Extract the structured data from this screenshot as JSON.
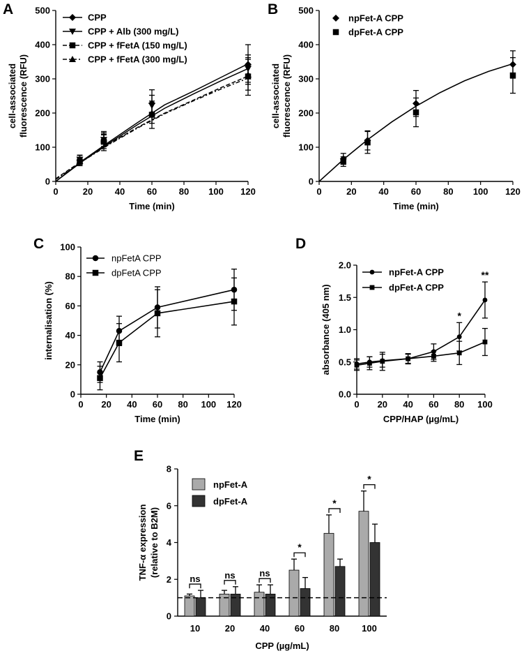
{
  "figure_panels": [
    "A",
    "B",
    "C",
    "D",
    "E"
  ],
  "chart_data": [
    {
      "panel": "A",
      "type": "scatter",
      "xlabel": "Time (min)",
      "ylabel": [
        "cell-associated",
        "fluorescence (RFU)"
      ],
      "xlim": [
        0,
        120
      ],
      "ylim": [
        0,
        500
      ],
      "xticks": [
        "0",
        "20",
        "40",
        "60",
        "80",
        "100",
        "120"
      ],
      "yticks": [
        "0",
        "100",
        "200",
        "300",
        "400",
        "500"
      ],
      "legend_position": "top-left",
      "series": [
        {
          "name": "CPP",
          "marker": "diamond",
          "line": "solid",
          "x": [
            15,
            30,
            60,
            120
          ],
          "y": [
            62,
            118,
            228,
            342
          ],
          "err": [
            15,
            28,
            40,
            58
          ],
          "fit": [
            0,
            62,
            118,
            172,
            224,
            264,
            304,
            344
          ]
        },
        {
          "name": "CPP + Alb (300 mg/L)",
          "marker": "triangle-down",
          "line": "solid",
          "x": [
            15,
            30,
            60,
            120
          ],
          "y": [
            64,
            122,
            222,
            330
          ],
          "err": [
            12,
            20,
            30,
            40
          ],
          "fit": [
            0,
            60,
            114,
            166,
            214,
            256,
            294,
            330
          ]
        },
        {
          "name": "CPP + fFetA (150 mg/L)",
          "marker": "square",
          "line": "dashed",
          "x": [
            15,
            30,
            60,
            120
          ],
          "y": [
            58,
            116,
            195,
            307
          ],
          "err": [
            12,
            20,
            40,
            55
          ],
          "fit": [
            8,
            62,
            112,
            158,
            200,
            238,
            274,
            308
          ]
        },
        {
          "name": "CPP + fFetA (300 mg/L)",
          "marker": "triangle-up",
          "line": "dashdot",
          "x": [
            15,
            30,
            60,
            120
          ],
          "y": [
            60,
            120,
            200,
            312
          ],
          "err": [
            10,
            18,
            30,
            45
          ],
          "fit": [
            6,
            60,
            110,
            156,
            198,
            236,
            270,
            302
          ]
        }
      ]
    },
    {
      "panel": "B",
      "type": "scatter",
      "xlabel": "Time (min)",
      "ylabel": [
        "cell-associated",
        "fluorescence (RFU)"
      ],
      "xlim": [
        0,
        120
      ],
      "ylim": [
        0,
        500
      ],
      "xticks": [
        "0",
        "20",
        "40",
        "60",
        "80",
        "100",
        "120"
      ],
      "yticks": [
        "0",
        "100",
        "200",
        "300",
        "400",
        "500"
      ],
      "legend_position": "top-left",
      "series": [
        {
          "name": "npFet-A CPP",
          "marker": "diamond",
          "x": [
            15,
            30,
            60,
            120
          ],
          "y": [
            66,
            120,
            228,
            342
          ],
          "err": [
            16,
            28,
            38,
            40
          ]
        },
        {
          "name": "dpFet-A CPP",
          "marker": "square",
          "x": [
            15,
            30,
            60,
            120
          ],
          "y": [
            58,
            114,
            202,
            310
          ],
          "err": [
            14,
            32,
            42,
            52
          ]
        }
      ],
      "fit": {
        "x": [
          0,
          15,
          30,
          45,
          60,
          75,
          90,
          105,
          120
        ],
        "y": [
          0,
          64,
          122,
          174,
          220,
          260,
          294,
          322,
          344
        ]
      }
    },
    {
      "panel": "C",
      "type": "line",
      "xlabel": "Time (min)",
      "ylabel": "internalisation (%)",
      "xlim": [
        0,
        120
      ],
      "ylim": [
        0,
        100
      ],
      "xticks": [
        "0",
        "20",
        "40",
        "60",
        "80",
        "100",
        "120"
      ],
      "yticks": [
        "0",
        "20",
        "40",
        "60",
        "80",
        "100"
      ],
      "legend_position": "top-left",
      "series": [
        {
          "name": "npFetA CPP",
          "marker": "circle",
          "x": [
            15,
            30,
            60,
            120
          ],
          "y": [
            15,
            43,
            59,
            71
          ],
          "err": [
            7,
            10,
            14,
            14
          ]
        },
        {
          "name": "dpFetA CPP",
          "marker": "square",
          "x": [
            15,
            30,
            60,
            120
          ],
          "y": [
            11,
            35,
            55,
            63
          ],
          "err": [
            8,
            13,
            16,
            16
          ]
        }
      ]
    },
    {
      "panel": "D",
      "type": "line",
      "xlabel": "CPP/HAP (µg/mL)",
      "ylabel": "absorbance (405 nm)",
      "xlim": [
        0,
        100
      ],
      "ylim": [
        0,
        2.0
      ],
      "xticks": [
        "0",
        "20",
        "40",
        "60",
        "80",
        "100"
      ],
      "yticks": [
        "0.0",
        "0.5",
        "1.0",
        "1.5",
        "2.0"
      ],
      "legend_position": "top-left",
      "series": [
        {
          "name": "npFet-A CPP",
          "marker": "circle",
          "x": [
            0,
            10,
            20,
            40,
            60,
            80,
            100
          ],
          "y": [
            0.47,
            0.5,
            0.52,
            0.55,
            0.66,
            0.89,
            1.46
          ],
          "err": [
            0.08,
            0.08,
            0.1,
            0.07,
            0.12,
            0.22,
            0.28
          ]
        },
        {
          "name": "dpFet-A CPP",
          "marker": "square",
          "x": [
            0,
            10,
            20,
            40,
            60,
            80,
            100
          ],
          "y": [
            0.45,
            0.48,
            0.51,
            0.55,
            0.59,
            0.64,
            0.81
          ],
          "err": [
            0.08,
            0.1,
            0.14,
            0.08,
            0.08,
            0.18,
            0.21
          ]
        }
      ],
      "annotations": [
        {
          "x": 80,
          "text": "*"
        },
        {
          "x": 100,
          "text": "**"
        }
      ]
    },
    {
      "panel": "E",
      "type": "bar",
      "xlabel": "CPP (µg/mL)",
      "ylabel": [
        "TNF-α expression",
        "(relative to B2M)"
      ],
      "ylim": [
        0,
        8
      ],
      "yticks": [
        "0",
        "2",
        "4",
        "6",
        "8"
      ],
      "categories": [
        "10",
        "20",
        "40",
        "60",
        "80",
        "100"
      ],
      "legend_position": "top-left",
      "reference_line": 1,
      "series": [
        {
          "name": "npFet-A",
          "color": "#aaaaaa",
          "values": [
            1.1,
            1.2,
            1.3,
            2.5,
            4.5,
            5.7
          ],
          "err": [
            0.1,
            0.2,
            0.4,
            0.6,
            1.0,
            1.1
          ]
        },
        {
          "name": "dpFet-A",
          "color": "#333333",
          "values": [
            1.0,
            1.2,
            1.2,
            1.5,
            2.7,
            4.0
          ],
          "err": [
            0.4,
            0.4,
            0.5,
            0.6,
            0.4,
            1.0
          ]
        }
      ],
      "significance": [
        "ns",
        "ns",
        "ns",
        "*",
        "*",
        "*"
      ]
    }
  ]
}
